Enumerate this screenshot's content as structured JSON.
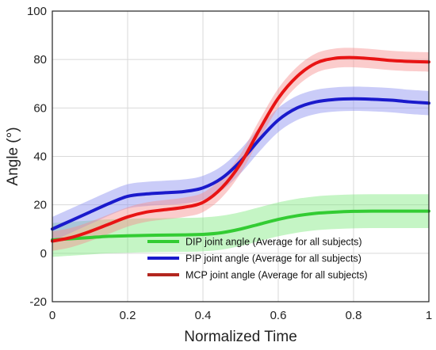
{
  "chart_data": {
    "type": "line",
    "xlabel": "Normalized Time",
    "ylabel": "Angle (°)",
    "xlim": [
      0,
      1
    ],
    "ylim": [
      -20,
      100
    ],
    "x_ticks": [
      "0",
      "0.2",
      "0.4",
      "0.6",
      "0.8",
      "1"
    ],
    "y_ticks": [
      "-20",
      "0",
      "20",
      "40",
      "60",
      "80",
      "100"
    ],
    "grid": true,
    "legend_position": "lower-right",
    "series": [
      {
        "name": "DIP joint angle  (Average for all subjects)",
        "color": "#33cc33",
        "band_color": "#7ee87e",
        "x": [
          0,
          0.05,
          0.1,
          0.15,
          0.2,
          0.25,
          0.3,
          0.35,
          0.4,
          0.45,
          0.5,
          0.55,
          0.6,
          0.65,
          0.7,
          0.75,
          0.8,
          0.85,
          0.9,
          0.95,
          1.0
        ],
        "y": [
          5.5,
          6,
          6.5,
          7,
          7.2,
          7.4,
          7.5,
          7.6,
          7.8,
          8.5,
          10,
          12,
          14,
          15.5,
          16.5,
          17,
          17.3,
          17.4,
          17.4,
          17.4,
          17.4
        ],
        "band": [
          7,
          7,
          7,
          7,
          7,
          7,
          7,
          7,
          7,
          7,
          7,
          7,
          7,
          7,
          7,
          7,
          7,
          7,
          7,
          7,
          7
        ]
      },
      {
        "name": "PIP joint angle  (Average for all subjects)",
        "color": "#1a1acc",
        "band_color": "#8a8ef0",
        "x": [
          0,
          0.05,
          0.1,
          0.15,
          0.2,
          0.25,
          0.3,
          0.35,
          0.4,
          0.45,
          0.5,
          0.55,
          0.6,
          0.65,
          0.7,
          0.75,
          0.8,
          0.85,
          0.9,
          0.95,
          1.0
        ],
        "y": [
          10,
          13.5,
          17,
          20.5,
          23.5,
          24.5,
          25,
          25.5,
          27,
          31,
          38,
          47,
          55,
          60,
          62.5,
          63.5,
          63.8,
          63.6,
          63.2,
          62.5,
          62
        ],
        "band": [
          5,
          5,
          5,
          5,
          5,
          5,
          5,
          5,
          5,
          5,
          5,
          5,
          5,
          5,
          5,
          5,
          5,
          5,
          5,
          5,
          5
        ]
      },
      {
        "name": "MCP joint angle (Average for all subjects)",
        "color": "#e81414",
        "band_color": "#f78f8f",
        "x": [
          0,
          0.05,
          0.1,
          0.15,
          0.2,
          0.25,
          0.3,
          0.35,
          0.4,
          0.45,
          0.5,
          0.55,
          0.6,
          0.65,
          0.7,
          0.75,
          0.8,
          0.85,
          0.9,
          0.95,
          1.0
        ],
        "y": [
          5,
          6.5,
          9,
          12,
          15,
          17,
          18,
          19,
          21,
          27,
          37,
          51,
          64,
          73,
          78.5,
          80.5,
          80.8,
          80.3,
          79.6,
          79.2,
          79
        ],
        "band": [
          4,
          4,
          4,
          4,
          4,
          4,
          4,
          4,
          4,
          4,
          4,
          4,
          4,
          4,
          4,
          4,
          4,
          4,
          4,
          4,
          4
        ]
      }
    ]
  }
}
